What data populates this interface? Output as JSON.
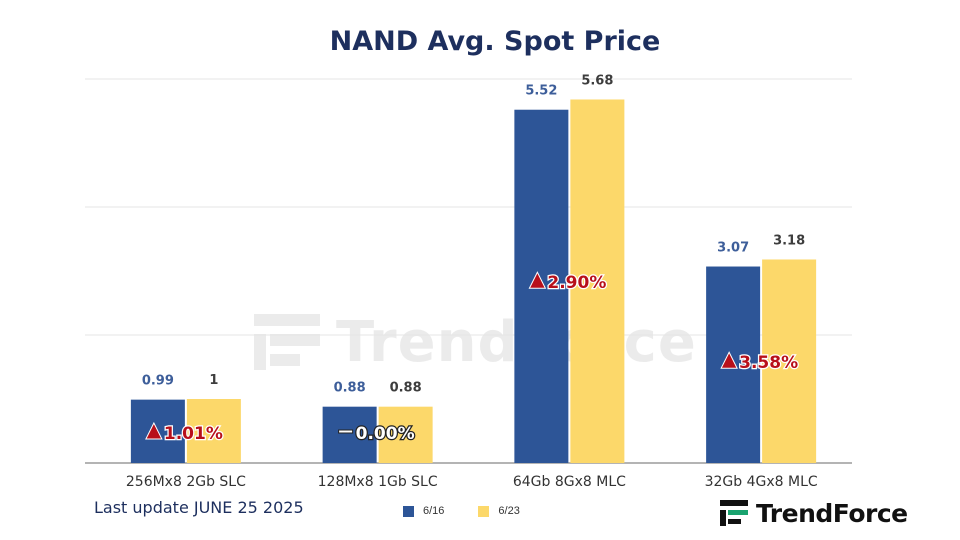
{
  "header": {
    "title": "NAND Avg. Spot Price"
  },
  "watermark": {
    "text": "TrendForce"
  },
  "footer": {
    "last_update": "Last update JUNE 25 2025"
  },
  "brand": {
    "name": "TrendForce"
  },
  "colors": {
    "series_a": "#2d5597",
    "series_b": "#fcd86a",
    "change_text": "#b8101a",
    "title": "#1d2f5e"
  },
  "chart_data": {
    "type": "bar",
    "title": "NAND Avg. Spot Price",
    "categories": [
      "256Mx8 2Gb SLC",
      "128Mx8 1Gb SLC",
      "64Gb 8Gx8 MLC",
      "32Gb 4Gx8 MLC"
    ],
    "series": [
      {
        "name": "6/16",
        "values": [
          0.99,
          0.88,
          5.52,
          3.07
        ],
        "labels": [
          "0.99",
          "0.88",
          "5.52",
          "3.07"
        ]
      },
      {
        "name": "6/23",
        "values": [
          1,
          0.88,
          5.68,
          3.18
        ],
        "labels": [
          "1",
          "0.88",
          "5.68",
          "3.18"
        ]
      }
    ],
    "changes": [
      {
        "text": "1.01%",
        "direction": "up"
      },
      {
        "text": "0.00%",
        "direction": "flat"
      },
      {
        "text": "2.90%",
        "direction": "up"
      },
      {
        "text": "3.58%",
        "direction": "up"
      }
    ],
    "ylim": [
      0,
      6
    ],
    "grid": true,
    "legend_position": "bottom-center",
    "xlabel": "",
    "ylabel": ""
  }
}
